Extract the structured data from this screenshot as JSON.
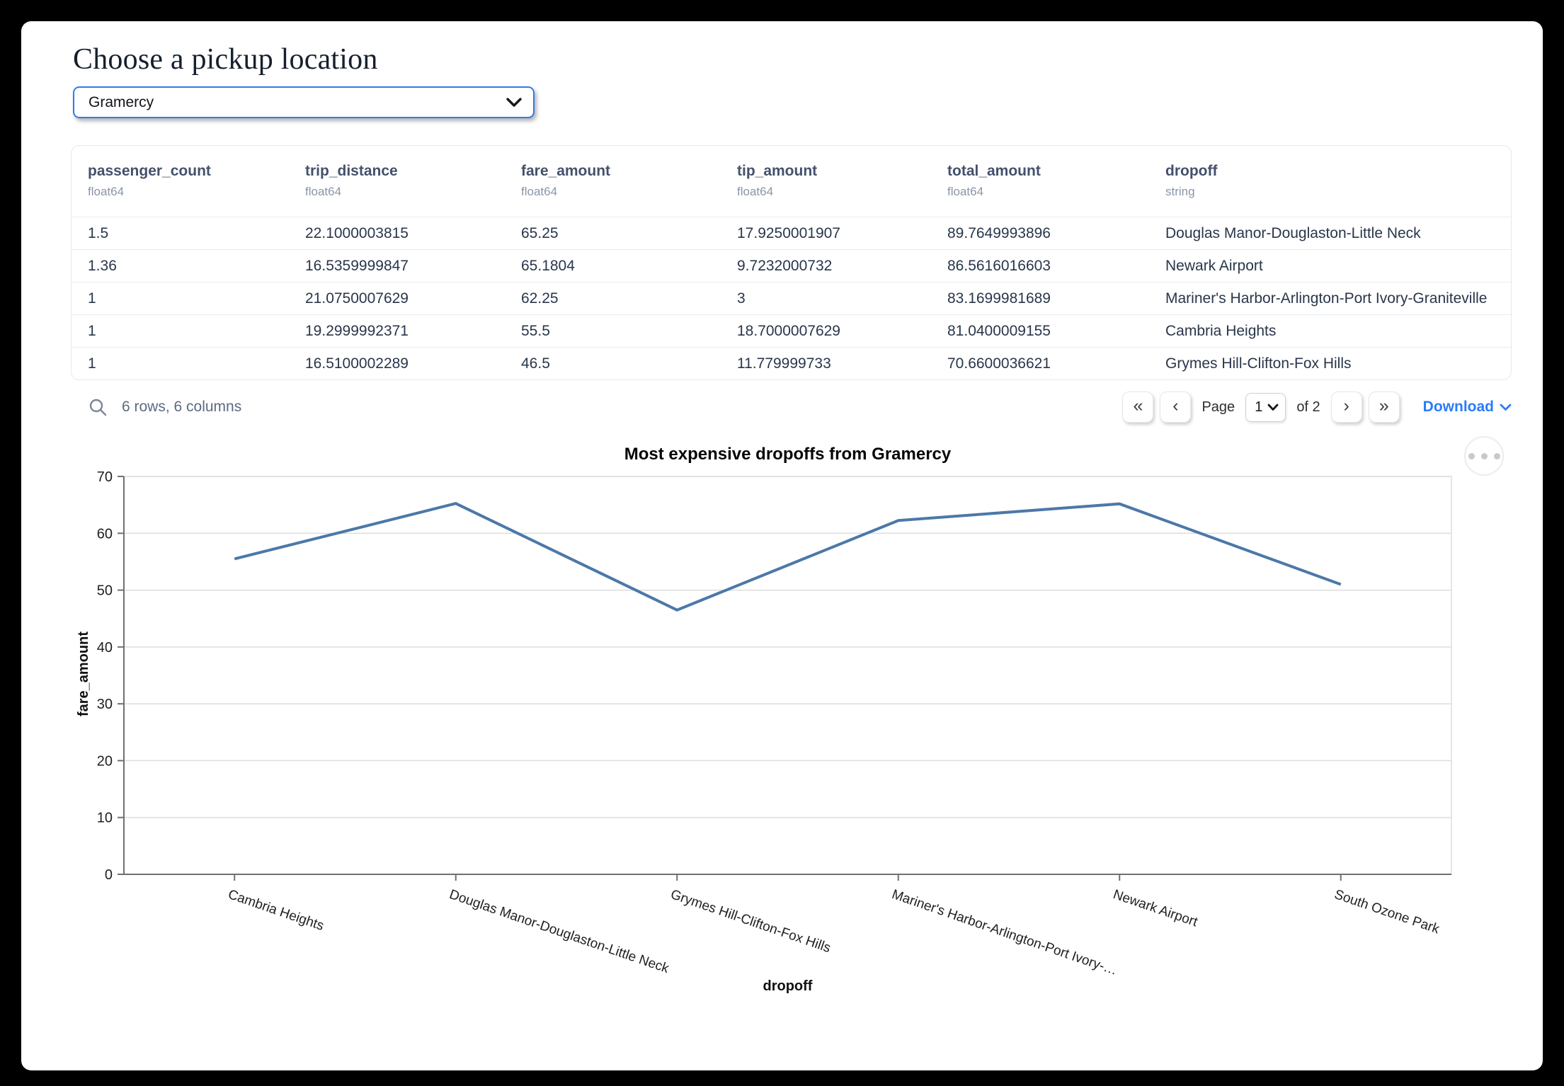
{
  "header": {
    "title": "Choose a pickup location"
  },
  "pickup_select": {
    "value": "Gramercy",
    "chevron_icon": "chevron-down"
  },
  "table": {
    "columns": [
      {
        "name": "passenger_count",
        "type": "float64"
      },
      {
        "name": "trip_distance",
        "type": "float64"
      },
      {
        "name": "fare_amount",
        "type": "float64"
      },
      {
        "name": "tip_amount",
        "type": "float64"
      },
      {
        "name": "total_amount",
        "type": "float64"
      },
      {
        "name": "dropoff",
        "type": "string"
      }
    ],
    "rows": [
      [
        "1.5",
        "22.1000003815",
        "65.25",
        "17.9250001907",
        "89.7649993896",
        "Douglas Manor-Douglaston-Little Neck"
      ],
      [
        "1.36",
        "16.5359999847",
        "65.1804",
        "9.7232000732",
        "86.5616016603",
        "Newark Airport"
      ],
      [
        "1",
        "21.0750007629",
        "62.25",
        "3",
        "83.1699981689",
        "Mariner's Harbor-Arlington-Port Ivory-Graniteville"
      ],
      [
        "1",
        "19.2999992371",
        "55.5",
        "18.7000007629",
        "81.0400009155",
        "Cambria Heights"
      ],
      [
        "1",
        "16.5100002289",
        "46.5",
        "11.779999733",
        "70.6600036621",
        "Grymes Hill-Clifton-Fox Hills"
      ]
    ],
    "summary": "6 rows, 6 columns"
  },
  "pagination": {
    "first_label": "«",
    "prev_label": "‹",
    "page_label": "Page",
    "current_page": "1",
    "of_label": "of 2",
    "next_label": "›",
    "last_label": "»",
    "download_label": "Download"
  },
  "chart_data": {
    "type": "line",
    "title": "Most expensive dropoffs from Gramercy",
    "xlabel": "dropoff",
    "ylabel": "fare_amount",
    "categories": [
      "Cambria Heights",
      "Douglas Manor-Douglaston-Little Neck",
      "Grymes Hill-Clifton-Fox Hills",
      "Mariner's Harbor-Arlington-Port Ivory-…",
      "Newark Airport",
      "South Ozone Park"
    ],
    "values": [
      55.5,
      65.25,
      46.5,
      62.25,
      65.1804,
      51
    ],
    "ylim": [
      0,
      70
    ],
    "yticks": [
      0,
      10,
      20,
      30,
      40,
      50,
      60,
      70
    ],
    "grid": true,
    "legend": "none",
    "line_color": "#4c78a8"
  },
  "colors": {
    "accent_blue": "#2e7cf0",
    "link_blue": "#2b7cf7",
    "line_color": "#4c78a8",
    "grid_gray": "#dddddd",
    "axis_gray": "#707070"
  }
}
